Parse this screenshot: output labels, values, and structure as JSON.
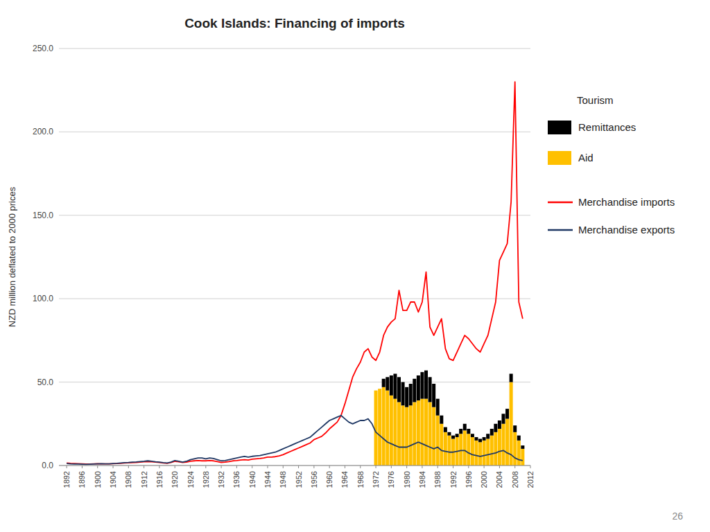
{
  "chart_data": {
    "type": "bar",
    "title": "Cook Islands: Financing of imports",
    "y_label": "NZD million deflated to 2000 prices",
    "x": [
      1892,
      1893,
      1894,
      1895,
      1896,
      1897,
      1898,
      1899,
      1900,
      1901,
      1902,
      1903,
      1904,
      1905,
      1906,
      1907,
      1908,
      1909,
      1910,
      1911,
      1912,
      1913,
      1914,
      1915,
      1916,
      1917,
      1918,
      1919,
      1920,
      1921,
      1922,
      1923,
      1924,
      1925,
      1926,
      1927,
      1928,
      1929,
      1930,
      1931,
      1932,
      1933,
      1934,
      1935,
      1936,
      1937,
      1938,
      1939,
      1940,
      1941,
      1942,
      1943,
      1944,
      1945,
      1946,
      1947,
      1948,
      1949,
      1950,
      1951,
      1952,
      1953,
      1954,
      1955,
      1956,
      1957,
      1958,
      1959,
      1960,
      1961,
      1962,
      1963,
      1964,
      1965,
      1966,
      1967,
      1968,
      1969,
      1970,
      1971,
      1972,
      1973,
      1974,
      1975,
      1976,
      1977,
      1978,
      1979,
      1980,
      1981,
      1982,
      1983,
      1984,
      1985,
      1986,
      1987,
      1988,
      1989,
      1990,
      1991,
      1992,
      1993,
      1994,
      1995,
      1996,
      1997,
      1998,
      1999,
      2000,
      2001,
      2002,
      2003,
      2004,
      2005,
      2006,
      2007,
      2008,
      2009,
      2010
    ],
    "series": [
      {
        "name": "Aid",
        "type": "bar",
        "color": "#ffc000",
        "values": [
          0,
          0,
          0,
          0,
          0,
          0,
          0,
          0,
          0,
          0,
          0,
          0,
          0,
          0,
          0,
          0,
          0,
          0,
          0,
          0,
          0,
          0,
          0,
          0,
          0,
          0,
          0,
          0,
          0,
          0,
          0,
          0,
          0,
          0,
          0,
          0,
          0,
          0,
          0,
          0,
          0,
          0,
          0,
          0,
          0,
          0,
          0,
          0,
          0,
          0,
          0,
          0,
          0,
          0,
          0,
          0,
          0,
          0,
          0,
          0,
          0,
          0,
          0,
          0,
          0,
          0,
          0,
          0,
          0,
          0,
          0,
          0,
          0,
          0,
          0,
          0,
          0,
          0,
          0,
          0,
          45,
          46,
          47,
          45,
          42,
          40,
          38,
          36,
          35,
          36,
          38,
          39,
          40,
          40,
          38,
          35,
          30,
          25,
          20,
          18,
          16,
          17,
          19,
          21,
          19,
          17,
          15,
          14,
          15,
          16,
          18,
          20,
          22,
          25,
          28,
          50,
          20,
          15,
          10
        ]
      },
      {
        "name": "Remittances",
        "type": "bar",
        "color": "#000000",
        "values": [
          0,
          0,
          0,
          0,
          0,
          0,
          0,
          0,
          0,
          0,
          0,
          0,
          0,
          0,
          0,
          0,
          0,
          0,
          0,
          0,
          0,
          0,
          0,
          0,
          0,
          0,
          0,
          0,
          0,
          0,
          0,
          0,
          0,
          0,
          0,
          0,
          0,
          0,
          0,
          0,
          0,
          0,
          0,
          0,
          0,
          0,
          0,
          0,
          0,
          0,
          0,
          0,
          0,
          0,
          0,
          0,
          0,
          0,
          0,
          0,
          0,
          0,
          0,
          0,
          0,
          0,
          0,
          0,
          0,
          0,
          0,
          0,
          0,
          0,
          0,
          0,
          0,
          0,
          0,
          0,
          0,
          0,
          5,
          8,
          12,
          15,
          15,
          14,
          12,
          13,
          14,
          15,
          16,
          17,
          15,
          14,
          10,
          5,
          3,
          2,
          2,
          2,
          3,
          4,
          3,
          2,
          2,
          2,
          2,
          3,
          4,
          5,
          5,
          6,
          6,
          5,
          4,
          3,
          2
        ]
      },
      {
        "name": "Merchandise imports",
        "type": "line",
        "color": "#ff0000",
        "values": [
          1.5,
          1.3,
          1.2,
          1.1,
          1.0,
          0.9,
          0.9,
          1.0,
          1.1,
          1.0,
          1.0,
          1.0,
          1.1,
          1.2,
          1.3,
          1.5,
          1.6,
          1.7,
          1.8,
          2.0,
          2.2,
          2.3,
          2.2,
          2.0,
          1.8,
          1.5,
          1.3,
          1.8,
          2.5,
          2.2,
          1.8,
          2.0,
          2.5,
          2.8,
          3.0,
          2.8,
          2.8,
          3.0,
          2.8,
          2.3,
          1.8,
          2.0,
          2.3,
          2.8,
          3.0,
          3.3,
          3.5,
          3.3,
          3.8,
          4.0,
          4.2,
          4.5,
          5.0,
          5.0,
          5.3,
          5.8,
          6.5,
          7.5,
          8.5,
          9.5,
          10.5,
          11.5,
          12.5,
          13.5,
          15.5,
          16.5,
          17.5,
          19.5,
          22.0,
          24.0,
          26.0,
          30.0,
          37.0,
          45.0,
          53.0,
          58.0,
          62.0,
          68.0,
          70.0,
          65.0,
          63.0,
          68.0,
          78.0,
          83.0,
          86.0,
          88.0,
          105.0,
          93.0,
          93.0,
          98.0,
          98.0,
          92.0,
          98.0,
          116.0,
          83.0,
          78.0,
          83.0,
          88.0,
          70.0,
          64.0,
          63.0,
          68.0,
          73.0,
          78.0,
          76.0,
          73.0,
          70.0,
          68.0,
          73.0,
          78.0,
          88.0,
          98.0,
          123.0,
          128.0,
          133.0,
          158.0,
          230.0,
          98.0,
          88.0
        ]
      },
      {
        "name": "Merchandise exports",
        "type": "line",
        "color": "#1f3864",
        "values": [
          1.2,
          1.0,
          0.9,
          0.9,
          0.8,
          0.7,
          0.8,
          0.9,
          1.0,
          1.1,
          1.0,
          1.0,
          1.2,
          1.3,
          1.5,
          1.7,
          1.8,
          2.0,
          2.1,
          2.3,
          2.5,
          2.8,
          2.5,
          2.2,
          2.0,
          1.7,
          1.5,
          2.0,
          3.0,
          2.5,
          2.0,
          2.5,
          3.5,
          4.0,
          4.5,
          4.5,
          4.0,
          4.5,
          4.2,
          3.5,
          2.8,
          3.0,
          3.5,
          4.0,
          4.5,
          5.0,
          5.5,
          5.0,
          5.5,
          5.8,
          6.0,
          6.5,
          7.0,
          7.5,
          8.0,
          9.0,
          10.0,
          11.0,
          12.0,
          13.0,
          14.0,
          15.0,
          16.0,
          17.0,
          19.0,
          21.0,
          23.0,
          25.0,
          27.0,
          28.0,
          29.0,
          30.0,
          28.0,
          26.0,
          25.0,
          26.0,
          27.0,
          27.0,
          28.0,
          25.0,
          20.0,
          18.0,
          16.0,
          14.0,
          13.0,
          12.0,
          11.0,
          11.0,
          11.0,
          12.0,
          13.0,
          14.0,
          13.0,
          12.0,
          11.0,
          10.0,
          11.0,
          9.0,
          8.5,
          8.0,
          8.0,
          8.5,
          9.0,
          9.0,
          7.5,
          6.5,
          6.0,
          5.5,
          6.0,
          6.5,
          7.0,
          7.5,
          8.5,
          9.0,
          7.5,
          6.5,
          4.5,
          3.5,
          3.0
        ]
      }
    ],
    "stacked": true,
    "xlim": [
      1890,
      2012
    ],
    "xticks": [
      1892,
      1896,
      1900,
      1904,
      1908,
      1912,
      1916,
      1920,
      1924,
      1928,
      1932,
      1936,
      1940,
      1944,
      1948,
      1952,
      1956,
      1960,
      1964,
      1968,
      1972,
      1976,
      1980,
      1984,
      1988,
      1992,
      1996,
      2000,
      2004,
      2008,
      2012
    ],
    "ylim": [
      0,
      250
    ],
    "yticks": [
      {
        "value": 0,
        "label": "0.0"
      },
      {
        "value": 50,
        "label": "50.0"
      },
      {
        "value": 100,
        "label": "100.0"
      },
      {
        "value": 150,
        "label": "150.0"
      },
      {
        "value": 200,
        "label": "200.0"
      },
      {
        "value": 250,
        "label": "250.0"
      }
    ],
    "grid": true,
    "legend": "right",
    "annotations": [
      "Tourism",
      "26"
    ]
  }
}
